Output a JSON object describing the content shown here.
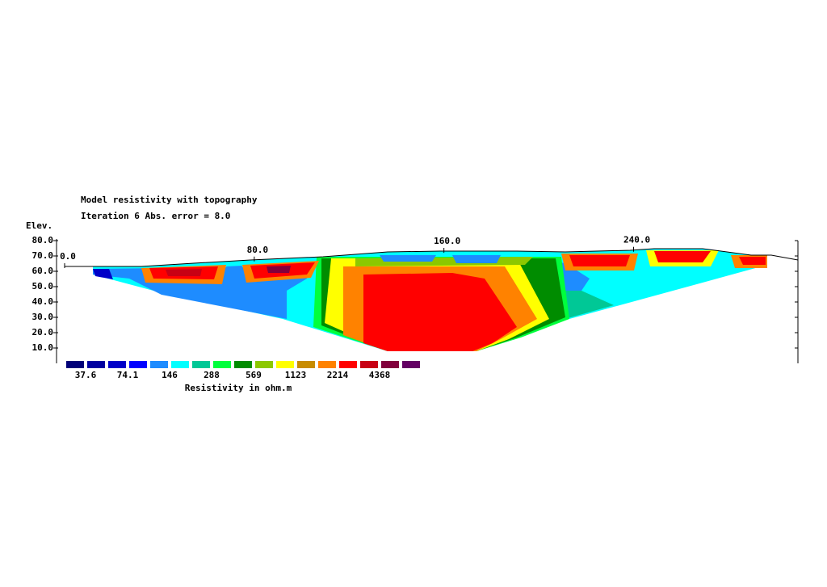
{
  "chart_data": {
    "type": "resistivity-section",
    "title": "Model resistivity with topography",
    "subtitle": "Iteration 6 Abs. error = 8.0",
    "y_label": "Elev.",
    "legend_title": "Resistivity in ohm.m",
    "xlim": [
      0,
      310
    ],
    "xticks": [
      {
        "value": 0,
        "label": "0.0"
      },
      {
        "value": 80,
        "label": "80.0"
      },
      {
        "value": 160,
        "label": "160.0"
      },
      {
        "value": 240,
        "label": "240.0"
      }
    ],
    "ylim": [
      0,
      80
    ],
    "yticks": [
      {
        "value": 10,
        "label": "10.0"
      },
      {
        "value": 20,
        "label": "20.0"
      },
      {
        "value": 30,
        "label": "30.0"
      },
      {
        "value": 40,
        "label": "40.0"
      },
      {
        "value": 50,
        "label": "50.0"
      },
      {
        "value": 60,
        "label": "60.0"
      },
      {
        "value": 70,
        "label": "70.0"
      },
      {
        "value": 80,
        "label": "80.0"
      }
    ],
    "colors": [
      "#000078",
      "#0000a0",
      "#0000c8",
      "#0000ff",
      "#1e8cff",
      "#00ffff",
      "#00c896",
      "#00ff3c",
      "#008c00",
      "#8cc800",
      "#ffff00",
      "#c88c00",
      "#ff8200",
      "#ff0000",
      "#c80014",
      "#82003c",
      "#640064"
    ],
    "contour_levels": [
      37.6,
      74.1,
      146,
      288,
      569,
      1123,
      2214,
      4368
    ]
  }
}
